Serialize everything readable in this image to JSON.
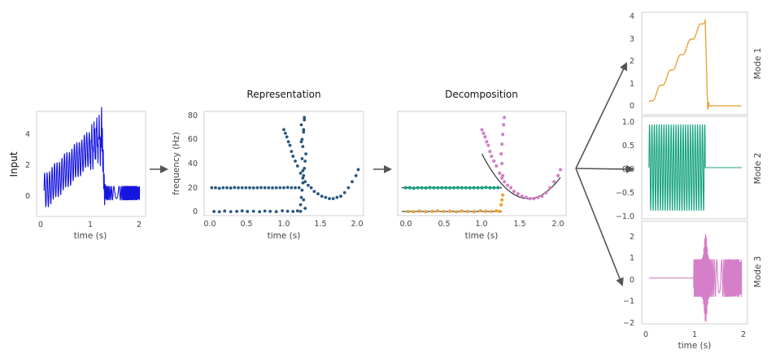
{
  "colors": {
    "input": "#1515e0",
    "rep": "#28577f",
    "mode1": "#e8a33a",
    "mode2": "#14a37e",
    "mode3": "#d47fc7",
    "ridge": "#333333",
    "arrow": "#555555"
  },
  "chart_data": [
    {
      "type": "line",
      "name": "input-panel",
      "title": "",
      "ylabel": "Input",
      "xlabel": "time (s)",
      "xlim": [
        -0.1,
        2.1
      ],
      "ylim": [
        -1.6,
        5.6
      ],
      "xticks": [
        0,
        1,
        2
      ],
      "yticks": [
        0,
        2,
        4
      ],
      "ramp_end": 1.22,
      "ramp_peak": 3.9,
      "mode2_freq_hz": 20,
      "mode3_freq_range_hz": [
        10,
        40
      ]
    },
    {
      "type": "scatter",
      "name": "representation-panel",
      "title": "Representation",
      "xlabel": "time (s)",
      "ylabel": "frequency (Hz)",
      "xlim": [
        -0.05,
        2.05
      ],
      "ylim": [
        -3,
        83
      ],
      "xticks": [
        0.0,
        0.5,
        1.0,
        1.5,
        2.0
      ],
      "xtick_labels": [
        "0.0",
        "0.5",
        "1.0",
        "1.5",
        "2.0"
      ],
      "yticks": [
        0,
        20,
        40,
        60,
        80
      ],
      "series": [
        {
          "x": [
            0.05,
            0.1,
            0.15,
            0.2,
            0.25,
            0.3,
            0.35,
            0.4,
            0.45,
            0.5,
            0.55,
            0.6,
            0.65,
            0.7,
            0.75,
            0.8,
            0.85,
            0.9,
            0.95,
            1.0,
            1.05,
            1.1,
            1.15,
            1.2
          ],
          "y": [
            20,
            20,
            19.6,
            20,
            20,
            19.8,
            20.2,
            20,
            20,
            20,
            20,
            19.9,
            20,
            20.1,
            20,
            20,
            19.9,
            20,
            20,
            20,
            20.3,
            20,
            20,
            20
          ]
        },
        {
          "x": [
            0.08,
            0.15,
            0.22,
            0.3,
            0.38,
            0.45,
            0.52,
            0.6,
            0.68,
            0.75,
            0.82,
            0.9,
            0.98,
            1.05,
            1.12,
            1.18,
            1.22
          ],
          "y": [
            0.4,
            0.2,
            0.8,
            0.3,
            0.5,
            0.9,
            0.4,
            0.6,
            0.2,
            0.8,
            0.5,
            0.3,
            1,
            0.6,
            0.4,
            0.9,
            0.5
          ]
        },
        {
          "x": [
            1.0,
            1.02,
            1.04,
            1.06,
            1.08,
            1.1,
            1.12,
            1.15,
            1.18,
            1.22,
            1.25,
            1.28,
            1.32,
            1.36,
            1.4,
            1.45,
            1.5,
            1.55,
            1.6,
            1.65,
            1.7,
            1.75,
            1.8,
            1.85,
            1.9,
            1.95,
            1.98
          ],
          "y": [
            68,
            65,
            62,
            58,
            55,
            50,
            46,
            42,
            38,
            32,
            28,
            25,
            22,
            20,
            17,
            15,
            13,
            12,
            11,
            11,
            12,
            13,
            16,
            20,
            25,
            30,
            35
          ]
        },
        {
          "x": [
            1.22,
            1.23,
            1.24,
            1.25,
            1.26,
            1.27,
            1.28,
            1.29,
            1.25,
            1.24,
            1.26,
            1.23,
            1.27,
            1.28,
            1.26,
            1.25,
            1.24,
            1.23,
            1.26,
            1.27
          ],
          "y": [
            6,
            12,
            18,
            24,
            30,
            36,
            42,
            48,
            54,
            60,
            66,
            72,
            78,
            3,
            10,
            34,
            44,
            58,
            68,
            76
          ]
        }
      ]
    },
    {
      "type": "scatter",
      "name": "decomposition-panel",
      "title": "Decomposition",
      "xlabel": "time (s)",
      "xlim": [
        -0.05,
        2.05
      ],
      "ylim": [
        -3,
        83
      ],
      "xticks": [
        0.0,
        0.5,
        1.0,
        1.5,
        2.0
      ],
      "xtick_labels": [
        "0.0",
        "0.5",
        "1.0",
        "1.5",
        "2.0"
      ],
      "yticks": [
        0,
        20,
        40,
        60,
        80
      ],
      "series": [
        {
          "color_key": "mode2",
          "x": [
            0.05,
            0.1,
            0.15,
            0.2,
            0.25,
            0.3,
            0.35,
            0.4,
            0.45,
            0.5,
            0.55,
            0.6,
            0.65,
            0.7,
            0.75,
            0.8,
            0.85,
            0.9,
            0.95,
            1.0,
            1.05,
            1.1,
            1.15,
            1.2
          ],
          "y": [
            20,
            20,
            19.6,
            20,
            20,
            19.8,
            20.2,
            20,
            20,
            20,
            20,
            19.9,
            20,
            20.1,
            20,
            20,
            19.9,
            20,
            20,
            20,
            20.3,
            20,
            20,
            20
          ]
        },
        {
          "color_key": "mode1",
          "x": [
            0.08,
            0.15,
            0.22,
            0.3,
            0.38,
            0.45,
            0.52,
            0.6,
            0.68,
            0.75,
            0.82,
            0.9,
            0.98,
            1.05,
            1.12,
            1.18,
            1.22,
            1.24,
            1.25,
            1.26
          ],
          "y": [
            0.4,
            0.2,
            0.8,
            0.3,
            0.5,
            0.9,
            0.4,
            0.6,
            0.2,
            0.8,
            0.5,
            0.3,
            1,
            0.6,
            0.4,
            0.9,
            0.5,
            6,
            10,
            14
          ]
        },
        {
          "color_key": "mode3",
          "x": [
            1.0,
            1.02,
            1.04,
            1.06,
            1.08,
            1.1,
            1.12,
            1.15,
            1.18,
            1.22,
            1.25,
            1.28,
            1.32,
            1.36,
            1.4,
            1.45,
            1.5,
            1.55,
            1.6,
            1.65,
            1.7,
            1.75,
            1.8,
            1.85,
            1.9,
            1.95,
            1.98,
            1.24,
            1.25,
            1.26,
            1.27,
            1.28,
            1.25,
            1.26
          ],
          "y": [
            68,
            65,
            62,
            58,
            55,
            50,
            46,
            42,
            38,
            32,
            28,
            25,
            22,
            20,
            17,
            15,
            13,
            12,
            11,
            11,
            12,
            13,
            16,
            20,
            25,
            30,
            35,
            48,
            56,
            64,
            72,
            78,
            40,
            30
          ]
        }
      ]
    },
    {
      "type": "line",
      "name": "mode-1-panel",
      "title": "",
      "ylabel": "Mode 1",
      "xlim": [
        -0.1,
        2.1
      ],
      "ylim": [
        -0.4,
        4.2
      ],
      "yticks": [
        0,
        1,
        2,
        3,
        4
      ],
      "ramp_end": 1.22,
      "ramp_peak": 3.9
    },
    {
      "type": "line",
      "name": "mode-2-panel",
      "title": "",
      "ylabel": "Mode 2",
      "xlim": [
        -0.1,
        2.1
      ],
      "ylim": [
        -1.1,
        1.1
      ],
      "yticks": [
        -1.0,
        -0.5,
        0.0,
        0.5,
        1.0
      ],
      "ytick_labels": [
        "−1.0",
        "−0.5",
        "0.0",
        "0.5",
        "1.0"
      ],
      "freq_hz": 20,
      "end": 1.22
    },
    {
      "type": "line",
      "name": "mode-3-panel",
      "title": "",
      "ylabel": "Mode 3",
      "xlabel": "time (s)",
      "xlim": [
        -0.1,
        2.1
      ],
      "ylim": [
        -2.1,
        2.6
      ],
      "xticks": [
        0,
        1,
        2
      ],
      "yticks": [
        -2,
        -1,
        0,
        1,
        2
      ],
      "ytick_labels": [
        "−2",
        "−1",
        "0",
        "1",
        "2"
      ],
      "start": 0.98
    }
  ]
}
